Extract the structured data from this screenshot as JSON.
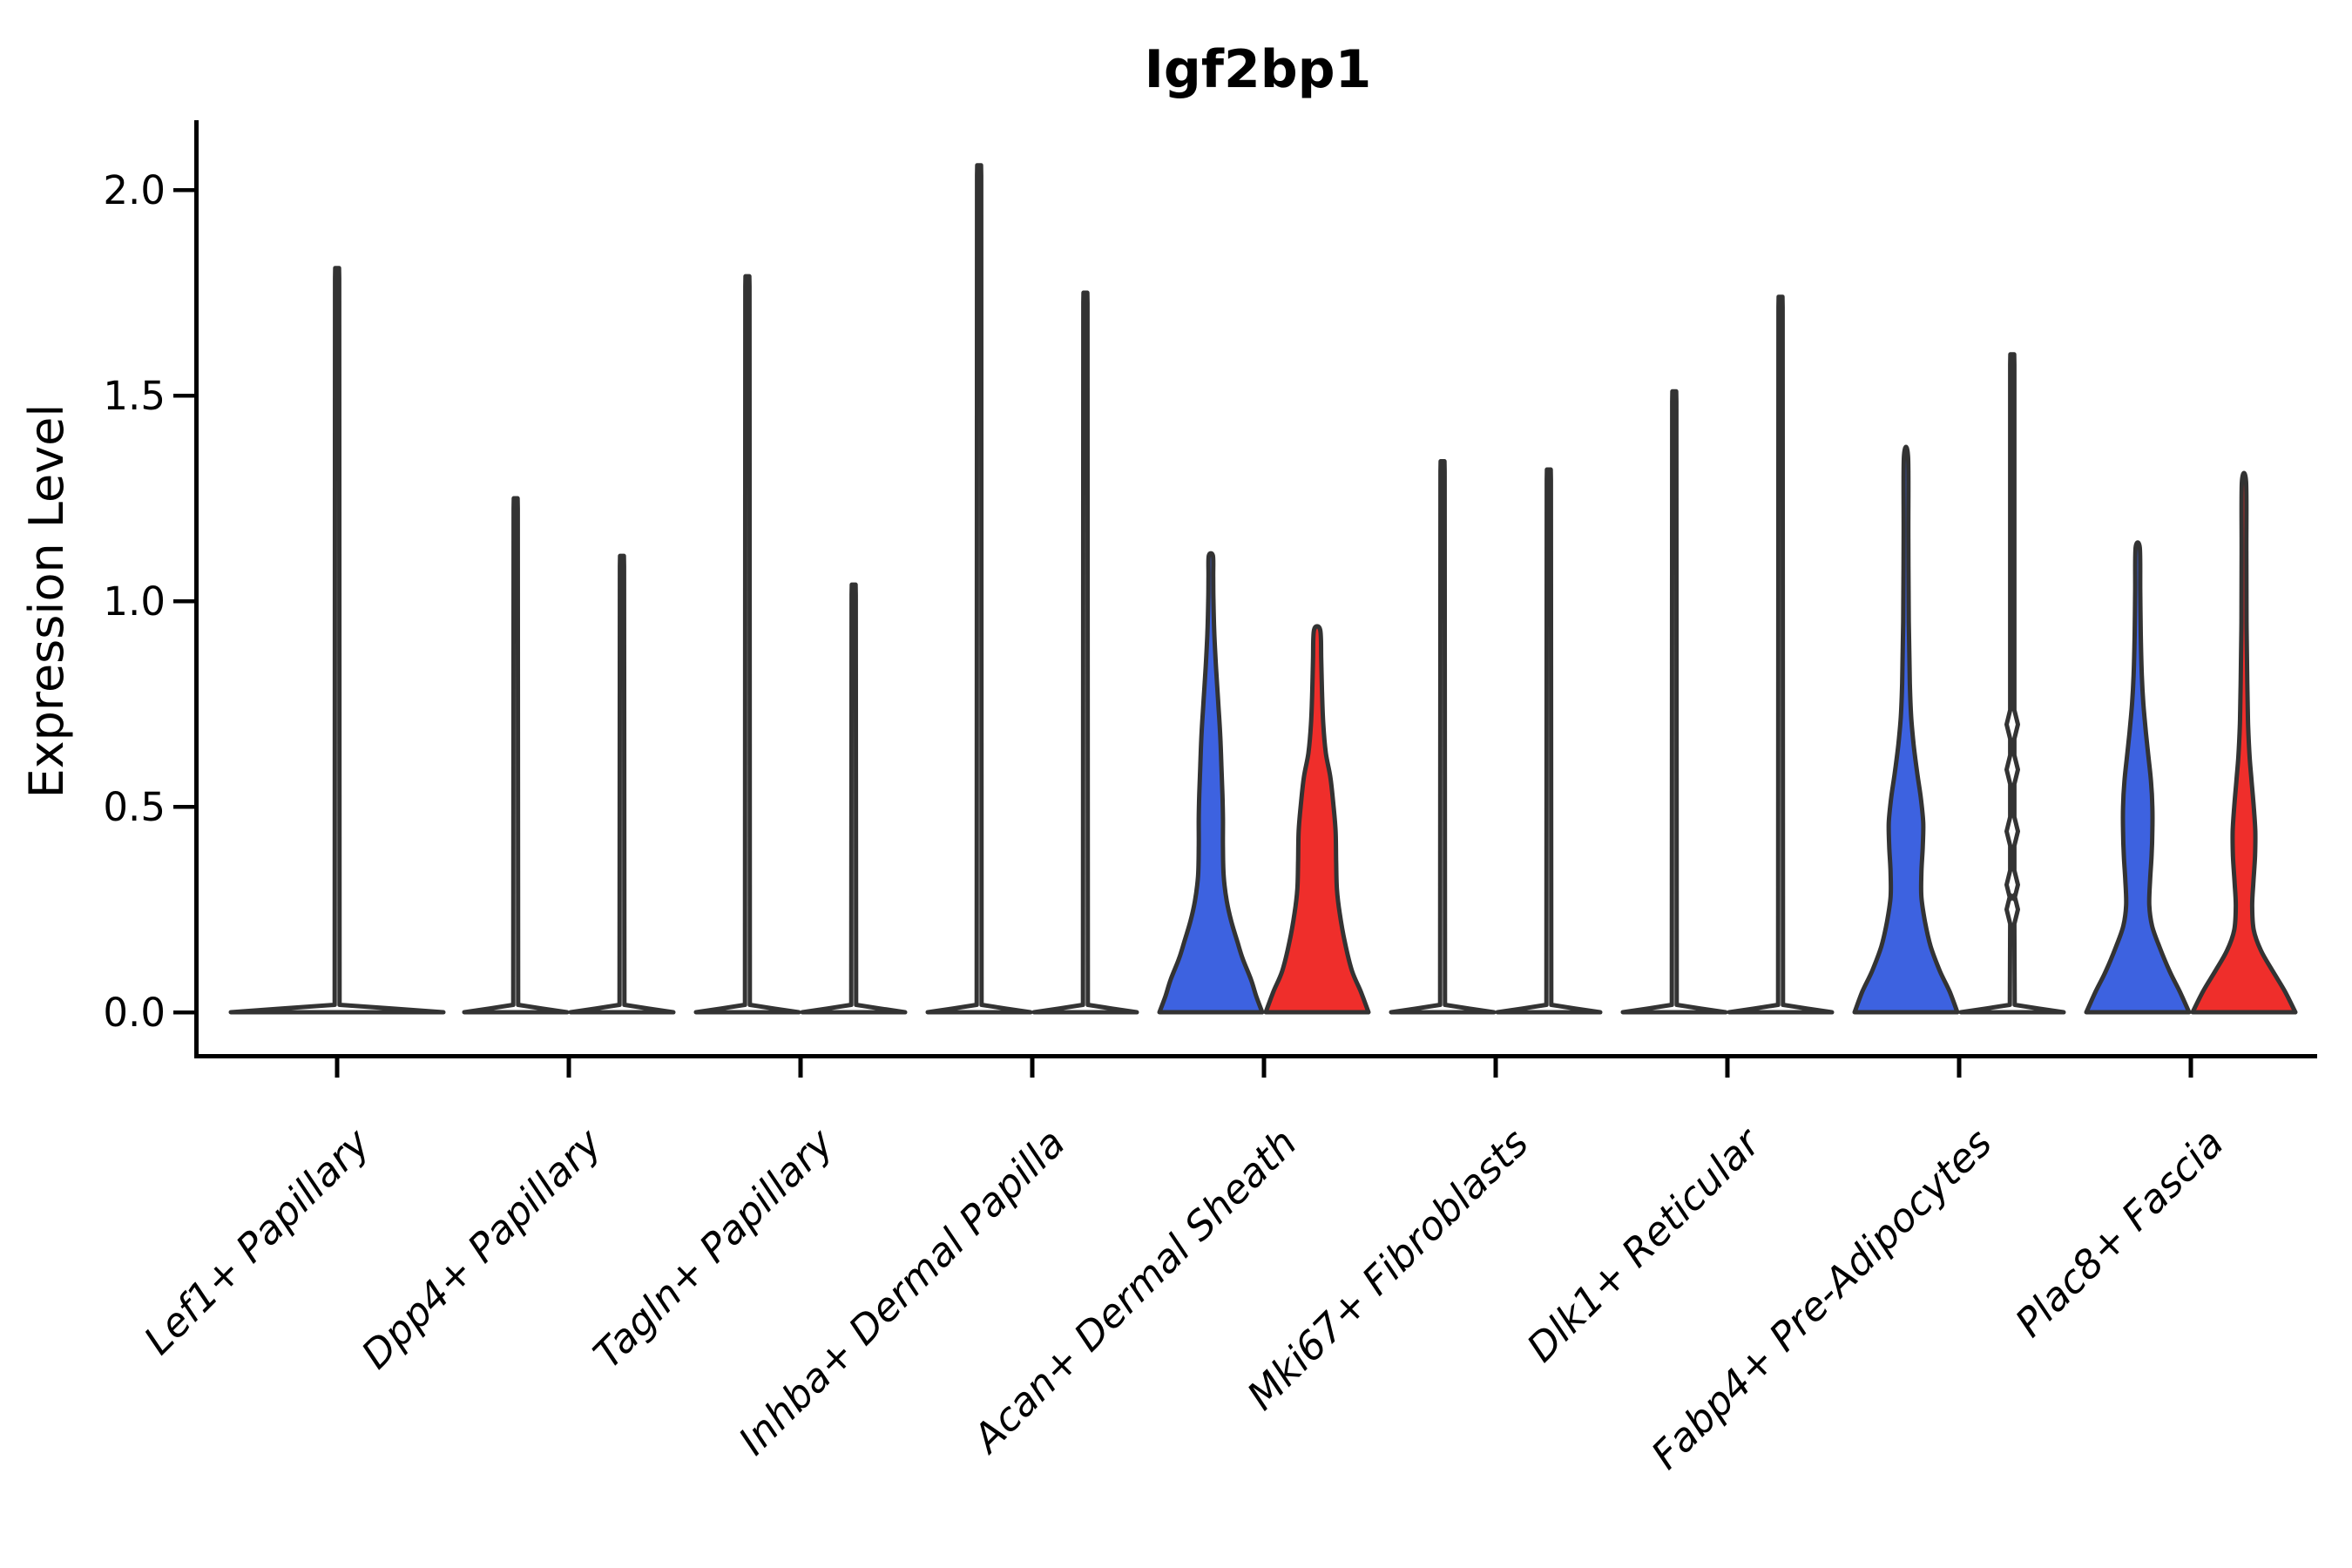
{
  "title": "Igf2bp1",
  "y_axis": {
    "label": "Expression Level",
    "tick_labels": [
      "0.0",
      "0.5",
      "1.0",
      "1.5",
      "2.0"
    ],
    "tick_values": [
      0.0,
      0.5,
      1.0,
      1.5,
      2.0
    ],
    "range": [
      -0.1,
      2.17
    ]
  },
  "x_axis": {
    "categories": [
      "Lef1+ Papillary",
      "Dpp4+ Papillary",
      "Tagln+ Papillary",
      "Inhba+ Dermal Papilla",
      "Acan+ Dermal Sheath",
      "Mki67+ Fibroblasts",
      "Dlk1+ Reticular",
      "Fabp4+ Pre-Adipocytes",
      "Plac8+ Fascia"
    ]
  },
  "colors": {
    "condition_blue": "#3D62E0",
    "condition_red": "#EF2E2B",
    "violin_outline": "#333333",
    "unfilled_violin": "#ffffff",
    "axis": "#000000",
    "text": "#000000",
    "background": "#ffffff"
  },
  "chart_data": {
    "type": "violin",
    "title": "Igf2bp1",
    "xlabel": "",
    "ylabel": "Expression Level",
    "ylim": [
      -0.1,
      2.17
    ],
    "y_ticks": [
      0.0,
      0.5,
      1.0,
      1.5,
      2.0
    ],
    "grid": false,
    "legend": "none",
    "x_tick_rotation_deg": 45,
    "categories": [
      "Lef1+ Papillary",
      "Dpp4+ Papillary",
      "Tagln+ Papillary",
      "Inhba+ Dermal Papilla",
      "Acan+ Dermal Sheath",
      "Mki67+ Fibroblasts",
      "Dlk1+ Reticular",
      "Fabp4+ Pre-Adipocytes",
      "Plac8+ Fascia"
    ],
    "groups": [
      {
        "category": "Lef1+ Papillary",
        "violins": [
          {
            "side": "full",
            "fill": "none",
            "shape": "spike",
            "max_expression": 1.81,
            "bulk_at_zero": true
          }
        ]
      },
      {
        "category": "Dpp4+ Papillary",
        "violins": [
          {
            "side": "left",
            "fill": "none",
            "shape": "spike",
            "max_expression": 1.25,
            "bulk_at_zero": true
          },
          {
            "side": "right",
            "fill": "none",
            "shape": "spike",
            "max_expression": 1.11,
            "bulk_at_zero": true
          }
        ]
      },
      {
        "category": "Tagln+ Papillary",
        "violins": [
          {
            "side": "left",
            "fill": "none",
            "shape": "spike",
            "max_expression": 1.79,
            "bulk_at_zero": true
          },
          {
            "side": "right",
            "fill": "none",
            "shape": "spike",
            "max_expression": 1.04,
            "bulk_at_zero": true
          }
        ]
      },
      {
        "category": "Inhba+ Dermal Papilla",
        "violins": [
          {
            "side": "left",
            "fill": "none",
            "shape": "spike",
            "max_expression": 2.06,
            "bulk_at_zero": true
          },
          {
            "side": "right",
            "fill": "none",
            "shape": "spike",
            "max_expression": 1.75,
            "bulk_at_zero": true
          }
        ]
      },
      {
        "category": "Acan+ Dermal Sheath",
        "violins": [
          {
            "side": "left",
            "fill": "blue",
            "shape": "density",
            "max_expression": 1.11,
            "profile": [
              [
                0,
                1.0
              ],
              [
                0.04,
                0.88
              ],
              [
                0.08,
                0.78
              ],
              [
                0.13,
                0.62
              ],
              [
                0.17,
                0.52
              ],
              [
                0.22,
                0.4
              ],
              [
                0.27,
                0.31
              ],
              [
                0.33,
                0.25
              ],
              [
                0.4,
                0.235
              ],
              [
                0.47,
                0.235
              ],
              [
                0.53,
                0.225
              ],
              [
                0.6,
                0.205
              ],
              [
                0.68,
                0.18
              ],
              [
                0.76,
                0.14
              ],
              [
                0.84,
                0.1
              ],
              [
                0.92,
                0.068
              ],
              [
                1.0,
                0.05
              ],
              [
                1.06,
                0.045
              ],
              [
                1.11,
                0.04
              ]
            ]
          },
          {
            "side": "right",
            "fill": "red",
            "shape": "density",
            "max_expression": 0.93,
            "profile": [
              [
                0,
                1.0
              ],
              [
                0.05,
                0.85
              ],
              [
                0.1,
                0.68
              ],
              [
                0.17,
                0.54
              ],
              [
                0.24,
                0.44
              ],
              [
                0.3,
                0.385
              ],
              [
                0.37,
                0.37
              ],
              [
                0.44,
                0.36
              ],
              [
                0.5,
                0.32
              ],
              [
                0.57,
                0.26
              ],
              [
                0.63,
                0.17
              ],
              [
                0.7,
                0.12
              ],
              [
                0.78,
                0.095
              ],
              [
                0.86,
                0.08
              ],
              [
                0.93,
                0.06
              ]
            ]
          }
        ]
      },
      {
        "category": "Mki67+ Fibroblasts",
        "violins": [
          {
            "side": "left",
            "fill": "none",
            "shape": "spike",
            "max_expression": 1.34,
            "bulk_at_zero": true
          },
          {
            "side": "right",
            "fill": "none",
            "shape": "spike",
            "max_expression": 1.32,
            "bulk_at_zero": true
          }
        ]
      },
      {
        "category": "Dlk1+ Reticular",
        "violins": [
          {
            "side": "left",
            "fill": "none",
            "shape": "spike",
            "max_expression": 1.51,
            "bulk_at_zero": true
          },
          {
            "side": "right",
            "fill": "none",
            "shape": "spike",
            "max_expression": 1.74,
            "bulk_at_zero": true
          }
        ]
      },
      {
        "category": "Fabp4+ Pre-Adipocytes",
        "violins": [
          {
            "side": "left",
            "fill": "blue",
            "shape": "density",
            "max_expression": 1.35,
            "profile": [
              [
                0,
                1.0
              ],
              [
                0.05,
                0.85
              ],
              [
                0.1,
                0.66
              ],
              [
                0.16,
                0.48
              ],
              [
                0.22,
                0.37
              ],
              [
                0.28,
                0.3
              ],
              [
                0.34,
                0.3
              ],
              [
                0.4,
                0.325
              ],
              [
                0.46,
                0.335
              ],
              [
                0.52,
                0.29
              ],
              [
                0.58,
                0.22
              ],
              [
                0.65,
                0.15
              ],
              [
                0.72,
                0.1
              ],
              [
                0.8,
                0.075
              ],
              [
                0.95,
                0.055
              ],
              [
                1.15,
                0.045
              ],
              [
                1.35,
                0.04
              ]
            ]
          },
          {
            "side": "right",
            "fill": "none",
            "shape": "spike",
            "max_expression": 1.6,
            "bulk_at_zero": true,
            "nubs": [
              0.25,
              0.31,
              0.44,
              0.59,
              0.7
            ]
          }
        ]
      },
      {
        "category": "Plac8+ Fascia",
        "violins": [
          {
            "side": "left",
            "fill": "blue",
            "shape": "density",
            "max_expression": 1.13,
            "profile": [
              [
                0,
                1.0
              ],
              [
                0.05,
                0.82
              ],
              [
                0.1,
                0.62
              ],
              [
                0.16,
                0.42
              ],
              [
                0.21,
                0.28
              ],
              [
                0.26,
                0.225
              ],
              [
                0.32,
                0.24
              ],
              [
                0.38,
                0.27
              ],
              [
                0.44,
                0.285
              ],
              [
                0.5,
                0.285
              ],
              [
                0.56,
                0.26
              ],
              [
                0.62,
                0.21
              ],
              [
                0.68,
                0.16
              ],
              [
                0.75,
                0.11
              ],
              [
                0.82,
                0.08
              ],
              [
                0.92,
                0.06
              ],
              [
                1.03,
                0.05
              ],
              [
                1.13,
                0.04
              ]
            ]
          },
          {
            "side": "right",
            "fill": "red",
            "shape": "density",
            "max_expression": 1.29,
            "profile": [
              [
                0,
                1.0
              ],
              [
                0.05,
                0.8
              ],
              [
                0.1,
                0.56
              ],
              [
                0.15,
                0.33
              ],
              [
                0.2,
                0.19
              ],
              [
                0.26,
                0.16
              ],
              [
                0.32,
                0.185
              ],
              [
                0.38,
                0.215
              ],
              [
                0.44,
                0.22
              ],
              [
                0.5,
                0.19
              ],
              [
                0.56,
                0.15
              ],
              [
                0.62,
                0.11
              ],
              [
                0.7,
                0.08
              ],
              [
                0.8,
                0.065
              ],
              [
                0.95,
                0.05
              ],
              [
                1.12,
                0.045
              ],
              [
                1.29,
                0.04
              ]
            ]
          }
        ]
      }
    ]
  }
}
